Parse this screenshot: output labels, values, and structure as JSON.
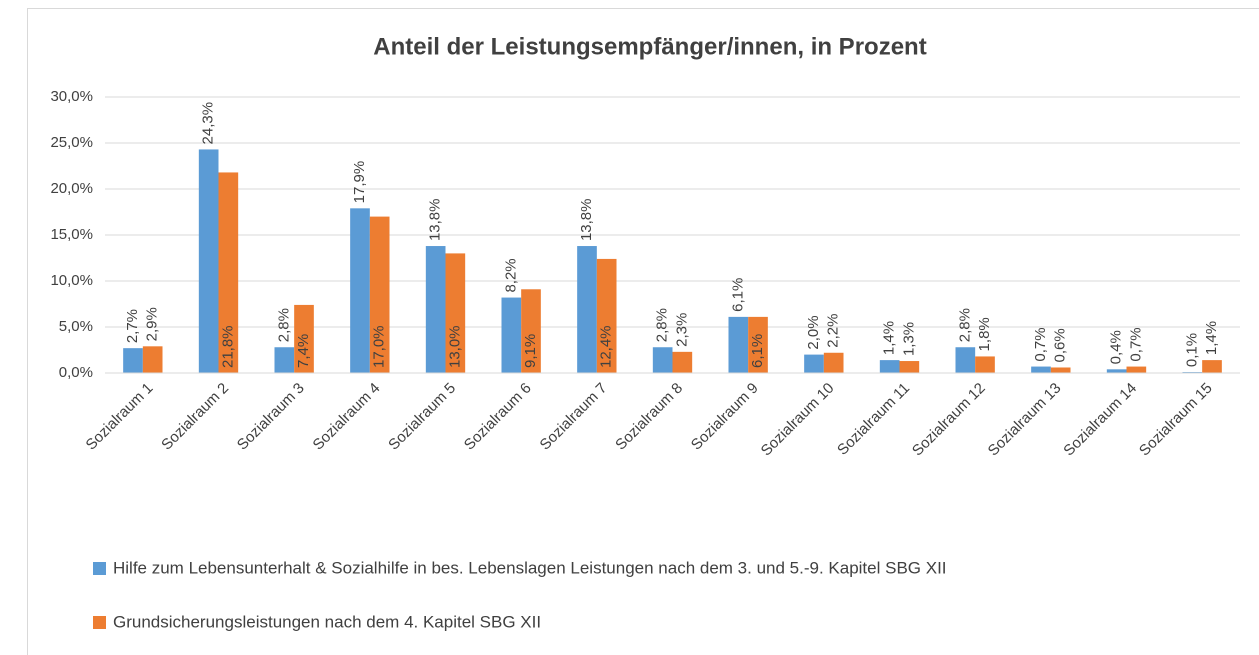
{
  "chart_data": {
    "type": "bar",
    "title": "Anteil der Leistungsempfänger/innen, in Prozent",
    "categories": [
      "Sozialraum 1",
      "Sozialraum 2",
      "Sozialraum 3",
      "Sozialraum 4",
      "Sozialraum 5",
      "Sozialraum 6",
      "Sozialraum 7",
      "Sozialraum 8",
      "Sozialraum 9",
      "Sozialraum 10",
      "Sozialraum 11",
      "Sozialraum 12",
      "Sozialraum 13",
      "Sozialraum 14",
      "Sozialraum 15"
    ],
    "series": [
      {
        "name": "Hilfe zum Lebensunterhalt & Sozialhilfe in bes. Lebenslagen Leistungen nach dem 3. und 5.-9. Kapitel  SBG XII",
        "color": "#5b9bd5",
        "values": [
          2.7,
          24.3,
          2.8,
          17.9,
          13.8,
          8.2,
          13.8,
          2.8,
          6.1,
          2.0,
          1.4,
          2.8,
          0.7,
          0.4,
          0.1
        ],
        "value_labels": [
          "2,7%",
          "24,3%",
          "2,8%",
          "17,9%",
          "13,8%",
          "8,2%",
          "13,8%",
          "2,8%",
          "6,1%",
          "2,0%",
          "1,4%",
          "2,8%",
          "0,7%",
          "0,4%",
          "0,1%"
        ]
      },
      {
        "name": "Grundsicherungsleistungen nach dem 4. Kapitel  SBG XII",
        "color": "#ed7d31",
        "values": [
          2.9,
          21.8,
          7.4,
          17.0,
          13.0,
          9.1,
          12.4,
          2.3,
          6.1,
          2.2,
          1.3,
          1.8,
          0.6,
          0.7,
          1.4
        ],
        "value_labels": [
          "2,9%",
          "21,8%",
          "7,4%",
          "17,0%",
          "13,0%",
          "9,1%",
          "12,4%",
          "2,3%",
          "6,1%",
          "2,2%",
          "1,3%",
          "1,8%",
          "0,6%",
          "0,7%",
          "1,4%"
        ]
      }
    ],
    "ylim": [
      0,
      30
    ],
    "yticks": [
      {
        "value": 0,
        "label": "0,0%"
      },
      {
        "value": 5,
        "label": "5,0%"
      },
      {
        "value": 10,
        "label": "10,0%"
      },
      {
        "value": 15,
        "label": "15,0%"
      },
      {
        "value": 20,
        "label": "20,0%"
      },
      {
        "value": 25,
        "label": "25,0%"
      },
      {
        "value": 30,
        "label": "30,0%"
      }
    ],
    "grid": true,
    "legend": "bottom"
  }
}
